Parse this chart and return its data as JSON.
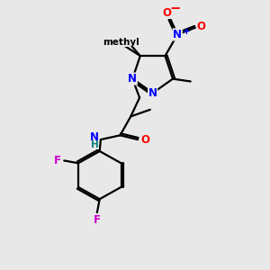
{
  "bg_color": "#e8e8e8",
  "bond_color": "#000000",
  "bond_width": 1.6,
  "atom_colors": {
    "N": "#0000ff",
    "O": "#ff0000",
    "F": "#cc00cc",
    "C": "#000000",
    "H": "#008080"
  },
  "fs": 8.5,
  "fsm": 7.5
}
